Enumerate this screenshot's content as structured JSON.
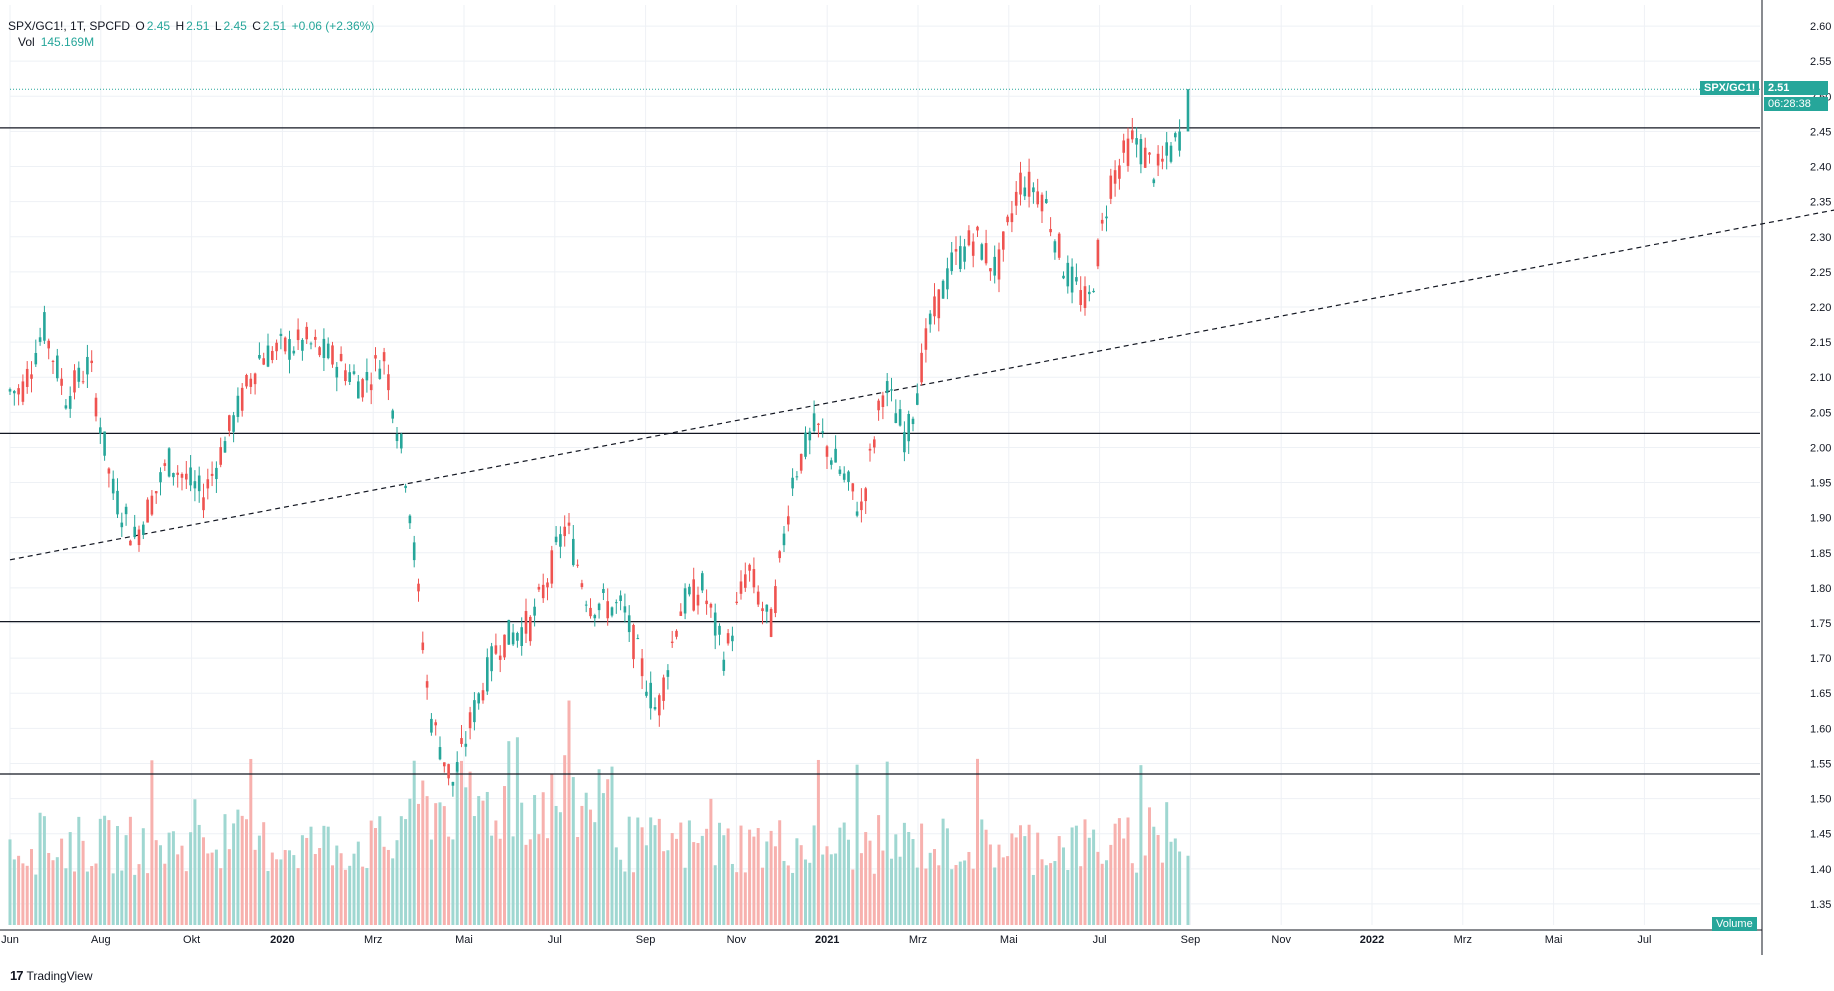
{
  "header": {
    "symbol": "SPX/GC1!, 1T, SPCFD",
    "o_label": "O",
    "o_value": "2.45",
    "h_label": "H",
    "h_value": "2.51",
    "l_label": "L",
    "l_value": "2.45",
    "c_label": "C",
    "c_value": "2.51",
    "change": "+0.06 (+2.36%)",
    "vol_label": "Vol",
    "vol_value": "145.169M"
  },
  "price_tag": {
    "symbol": "SPX/GC1!",
    "price": "2.51",
    "countdown": "06:28:38"
  },
  "volume_tag": "Volume",
  "brand": "TradingView",
  "colors": {
    "up": "#26a69a",
    "down": "#ef5350",
    "up_vol": "#9fd7d1",
    "down_vol": "#f7b1ae",
    "grid": "#eef1f5",
    "line": "#131722"
  },
  "chart_data": {
    "type": "candlestick",
    "ylim": [
      1.32,
      2.63
    ],
    "y_ticks": [
      "2.60",
      "2.55",
      "2.50",
      "2.45",
      "2.40",
      "2.35",
      "2.30",
      "2.25",
      "2.20",
      "2.15",
      "2.10",
      "2.05",
      "2.00",
      "1.95",
      "1.90",
      "1.85",
      "1.80",
      "1.75",
      "1.70",
      "1.65",
      "1.60",
      "1.55",
      "1.50",
      "1.45",
      "1.40",
      "1.35"
    ],
    "x_ticks": [
      "Jun",
      "Aug",
      "Okt",
      "2020",
      "Mrz",
      "Mai",
      "Jul",
      "Sep",
      "Nov",
      "2021",
      "Mrz",
      "Mai",
      "Jul",
      "Sep",
      "Nov",
      "2022",
      "Mrz",
      "Mai",
      "Jul"
    ],
    "horizontal_lines": [
      2.455,
      2.02,
      1.752,
      1.535
    ],
    "trendline": {
      "style": "dashed",
      "from": {
        "x": "Jun 2019",
        "y": 1.84
      },
      "to": {
        "x": "Nov 2022",
        "y": 2.355
      }
    },
    "last_price": 2.51,
    "price_path": [
      [
        "Jun 2019",
        2.08
      ],
      [
        "Jun 2019",
        2.17
      ],
      [
        "Jul 2019",
        2.07
      ],
      [
        "Jul 2019",
        2.12
      ],
      [
        "Aug 2019",
        1.94
      ],
      [
        "Aug 2019",
        1.87
      ],
      [
        "Sep 2019",
        1.98
      ],
      [
        "Okt 2019",
        1.93
      ],
      [
        "Okt 2019",
        2.01
      ],
      [
        "Nov 2019",
        2.13
      ],
      [
        "Dez 2019",
        2.15
      ],
      [
        "Jan 2020",
        2.12
      ],
      [
        "Jan 2020",
        2.09
      ],
      [
        "Feb 2020",
        2.13
      ],
      [
        "Feb 2020",
        1.95
      ],
      [
        "Mrz 2020",
        1.62
      ],
      [
        "Mrz 2020",
        1.52
      ],
      [
        "Apr 2020",
        1.63
      ],
      [
        "Apr 2020",
        1.72
      ],
      [
        "Mai 2020",
        1.75
      ],
      [
        "Jun 2020",
        1.89
      ],
      [
        "Jun 2020",
        1.78
      ],
      [
        "Jul 2020",
        1.77
      ],
      [
        "Aug 2020",
        1.62
      ],
      [
        "Aug 2020",
        1.77
      ],
      [
        "Sep 2020",
        1.8
      ],
      [
        "Sep 2020",
        1.7
      ],
      [
        "Okt 2020",
        1.83
      ],
      [
        "Okt 2020",
        1.74
      ],
      [
        "Nov 2020",
        1.96
      ],
      [
        "Nov 2020",
        2.03
      ],
      [
        "Dez 2020",
        1.97
      ],
      [
        "Dez 2020",
        1.91
      ],
      [
        "Jan 2021",
        2.09
      ],
      [
        "Jan 2021",
        2.01
      ],
      [
        "Feb 2021",
        2.17
      ],
      [
        "Feb 2021",
        2.26
      ],
      [
        "Mrz 2021",
        2.3
      ],
      [
        "Mrz 2021",
        2.25
      ],
      [
        "Apr 2021",
        2.38
      ],
      [
        "Apr 2021",
        2.36
      ],
      [
        "Mai 2021",
        2.25
      ],
      [
        "Mai 2021",
        2.2
      ],
      [
        "Jun 2021",
        2.38
      ],
      [
        "Jun 2021",
        2.44
      ],
      [
        "Jul 2021",
        2.39
      ],
      [
        "Jul 2021",
        2.44
      ],
      [
        "Aug 2021",
        2.51
      ]
    ],
    "volume_range_M": [
      0,
      260
    ]
  }
}
